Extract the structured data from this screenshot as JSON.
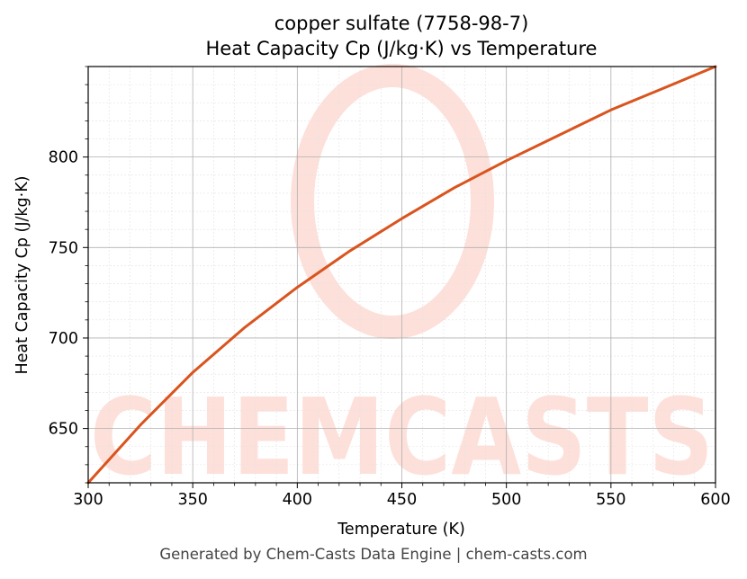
{
  "chart_data": {
    "type": "line",
    "title_line1": "copper sulfate (7758-98-7)",
    "title_line2": "Heat Capacity Cp (J/kg·K) vs Temperature",
    "xlabel": "Temperature (K)",
    "ylabel": "Heat Capacity Cp (J/kg·K)",
    "xlim": [
      300,
      600
    ],
    "ylim": [
      620,
      850
    ],
    "xticks": [
      300,
      350,
      400,
      450,
      500,
      550,
      600
    ],
    "yticks": [
      650,
      700,
      750,
      800
    ],
    "grid": true,
    "series": [
      {
        "color": "#d9541e",
        "x": [
          300,
          325,
          350,
          375,
          400,
          425,
          450,
          475,
          500,
          525,
          550,
          575,
          600
        ],
        "y": [
          620,
          652,
          681,
          706,
          728,
          748,
          766,
          783,
          798,
          812,
          826,
          838,
          850
        ]
      }
    ]
  },
  "watermark": {
    "text": "CHEMCASTS",
    "color": "#fde0da"
  },
  "footer": "Generated by Chem-Casts Data Engine | chem-casts.com"
}
